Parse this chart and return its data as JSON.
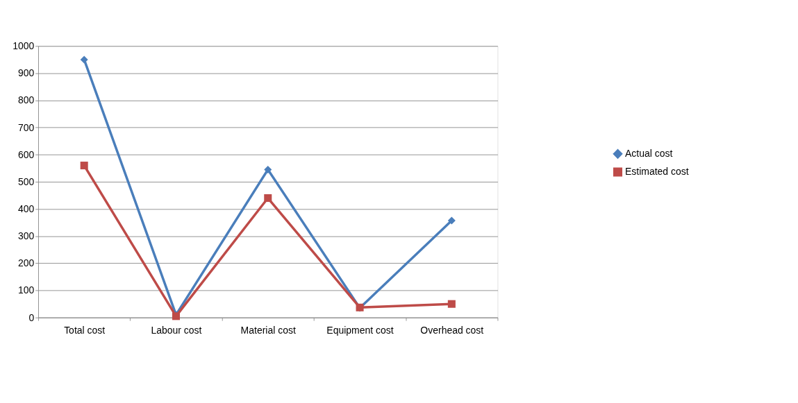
{
  "chart_data": {
    "type": "line",
    "categories": [
      "Total cost",
      "Labour cost",
      "Material cost",
      "Equipment cost",
      "Overhead cost"
    ],
    "series": [
      {
        "name": "Actual cost",
        "color": "#4a7ebb",
        "marker": "diamond",
        "values": [
          950,
          10,
          545,
          35,
          357
        ]
      },
      {
        "name": "Estimated cost",
        "color": "#be4b48",
        "marker": "square",
        "values": [
          560,
          5,
          440,
          37,
          50
        ]
      }
    ],
    "ylim": [
      0,
      1000
    ],
    "yticks": [
      0,
      100,
      200,
      300,
      400,
      500,
      600,
      700,
      800,
      900,
      1000
    ],
    "grid": "y",
    "legend": "right",
    "line_style": "solid"
  }
}
